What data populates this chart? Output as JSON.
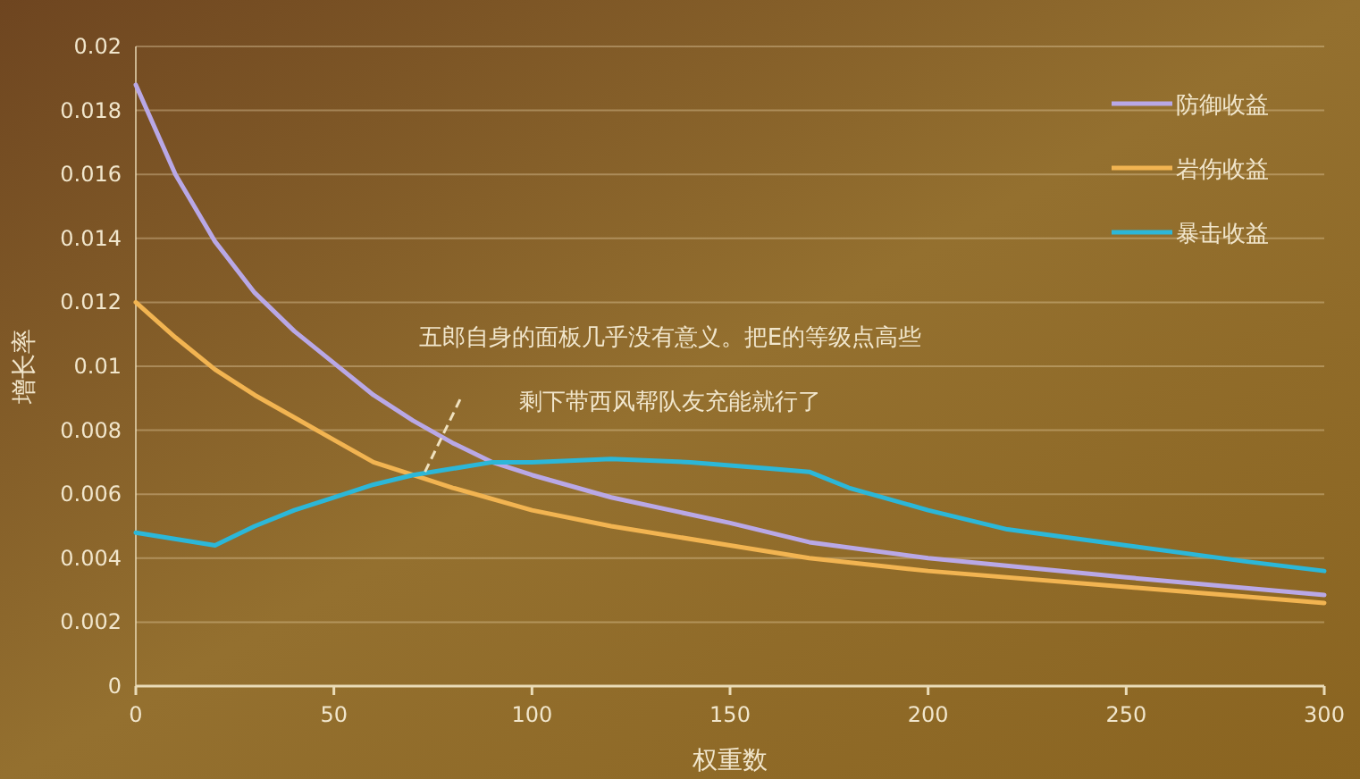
{
  "chart_data": {
    "type": "line",
    "xlabel": "权重数",
    "ylabel": "增长率",
    "annotations": [
      "五郎自身的面板几乎没有意义。把E的等级点高些",
      "剩下带西风帮队友充能就行了"
    ],
    "series": [
      {
        "name": "防御收益",
        "color": "#b9a8e6",
        "x": [
          0,
          10,
          20,
          30,
          40,
          50,
          60,
          70,
          80,
          90,
          100,
          120,
          150,
          170,
          200,
          250,
          300
        ],
        "values": [
          0.0188,
          0.016,
          0.0139,
          0.0123,
          0.0111,
          0.0101,
          0.0091,
          0.0083,
          0.0076,
          0.007,
          0.0066,
          0.0059,
          0.0051,
          0.0045,
          0.004,
          0.0034,
          0.00285
        ]
      },
      {
        "name": "岩伤收益",
        "color": "#f2b451",
        "x": [
          0,
          10,
          20,
          30,
          40,
          50,
          60,
          70,
          80,
          100,
          120,
          150,
          170,
          200,
          250,
          300
        ],
        "values": [
          0.012,
          0.0109,
          0.0099,
          0.0091,
          0.0084,
          0.0077,
          0.007,
          0.0066,
          0.0062,
          0.0055,
          0.005,
          0.0044,
          0.004,
          0.0036,
          0.0031,
          0.0026
        ]
      },
      {
        "name": "暴击收益",
        "color": "#2cb7d8",
        "x": [
          0,
          20,
          30,
          40,
          50,
          60,
          70,
          80,
          90,
          100,
          120,
          140,
          160,
          170,
          180,
          200,
          220,
          250,
          280,
          300
        ],
        "values": [
          0.0048,
          0.0044,
          0.005,
          0.0055,
          0.0059,
          0.0063,
          0.0066,
          0.0068,
          0.007,
          0.007,
          0.0071,
          0.007,
          0.0068,
          0.0067,
          0.0062,
          0.0055,
          0.0049,
          0.0044,
          0.0039,
          0.0036
        ]
      }
    ],
    "xlim": [
      0,
      300
    ],
    "xticks": [
      0,
      50,
      100,
      150,
      200,
      250,
      300
    ],
    "ylim": [
      0,
      0.02
    ],
    "yticks": [
      0,
      0.002,
      0.004,
      0.006,
      0.008,
      0.01,
      0.012,
      0.014,
      0.016,
      0.018,
      0.02
    ],
    "grid": "y",
    "legend": "top right",
    "marker": "none",
    "line_style": "solid"
  }
}
